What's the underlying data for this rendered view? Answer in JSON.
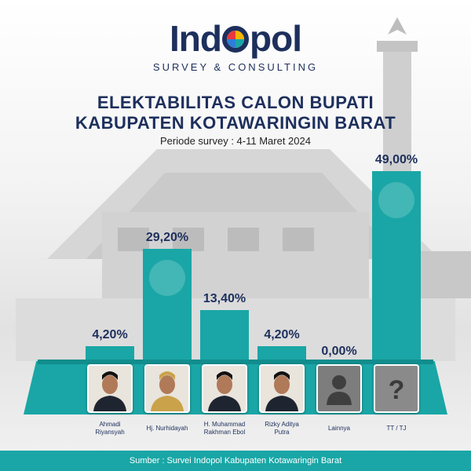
{
  "brand": {
    "name_left": "Ind",
    "name_right": "pol",
    "tagline": "SURVEY & CONSULTING",
    "logo_colors": [
      "#e8383d",
      "#f4b400",
      "#1aa6a6",
      "#2e7dd7"
    ]
  },
  "colors": {
    "navy": "#1d2f5c",
    "teal": "#1aa6a6",
    "teal_dark": "#128d8d"
  },
  "chart_data": {
    "type": "bar",
    "title": "ELEKTABILITAS CALON BUPATI",
    "title_line2": "KABUPATEN KOTAWARINGIN BARAT",
    "subtitle": "Periode survey : 4-11 Maret 2024",
    "categories": [
      [
        "Ahmadi",
        "Riyansyah"
      ],
      [
        "Hj. Nurhidayah"
      ],
      [
        "H. Muhammad",
        "Rakhman Ebol"
      ],
      [
        "Rizky Aditya",
        "Putra"
      ],
      [
        "Lainnya"
      ],
      [
        "TT / TJ"
      ]
    ],
    "values": [
      4.2,
      29.2,
      13.4,
      4.2,
      0.0,
      49.0
    ],
    "value_labels": [
      "4,20%",
      "29,20%",
      "13,40%",
      "4,20%",
      "0,00%",
      "49,00%"
    ],
    "photo_icons": [
      "candidate-photo",
      "candidate-photo",
      "candidate-photo",
      "candidate-photo",
      "person-icon",
      "question-icon"
    ],
    "ylim": [
      0,
      49
    ],
    "grid": false,
    "legend": "none"
  },
  "footer": {
    "source": "Sumber : Survei Indopol Kabupaten Kotawaringin Barat"
  }
}
